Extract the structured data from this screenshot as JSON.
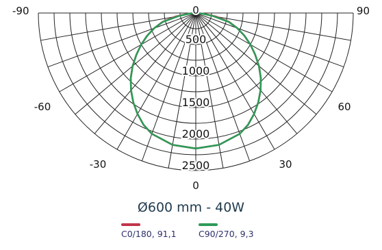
{
  "chart_data": {
    "type": "polar",
    "title": "Ø600 mm - 40W",
    "angle_labels": [
      {
        "text": "-90",
        "angle": -90
      },
      {
        "text": "90",
        "angle": 90
      },
      {
        "text": "-60",
        "angle": -60
      },
      {
        "text": "60",
        "angle": 60
      },
      {
        "text": "-30",
        "angle": -30
      },
      {
        "text": "30",
        "angle": 30
      },
      {
        "text": "0",
        "angle": 0
      }
    ],
    "radial_ticks": [
      "500",
      "1000",
      "1500",
      "2000",
      "2500"
    ],
    "radial_max": 2500,
    "bottom_label": "0",
    "series": [
      {
        "name": "C0/180, 91,1",
        "color": "#c0354a",
        "angles": [
          0,
          10,
          20,
          25,
          30,
          35,
          40,
          45,
          50,
          55,
          60,
          65,
          70,
          75,
          80,
          85,
          90
        ],
        "values": [
          2150,
          2125,
          2040,
          1960,
          1850,
          1730,
          1600,
          1460,
          1310,
          1150,
          1000,
          850,
          700,
          550,
          330,
          120,
          0
        ]
      },
      {
        "name": "C90/270, 9,3",
        "color": "#2e9a58",
        "angles": [
          0,
          10,
          20,
          25,
          30,
          35,
          40,
          45,
          50,
          55,
          60,
          65,
          70,
          75,
          80,
          85,
          90
        ],
        "values": [
          2150,
          2125,
          2040,
          1960,
          1850,
          1730,
          1600,
          1460,
          1310,
          1150,
          1000,
          850,
          700,
          540,
          280,
          100,
          0
        ]
      }
    ]
  }
}
